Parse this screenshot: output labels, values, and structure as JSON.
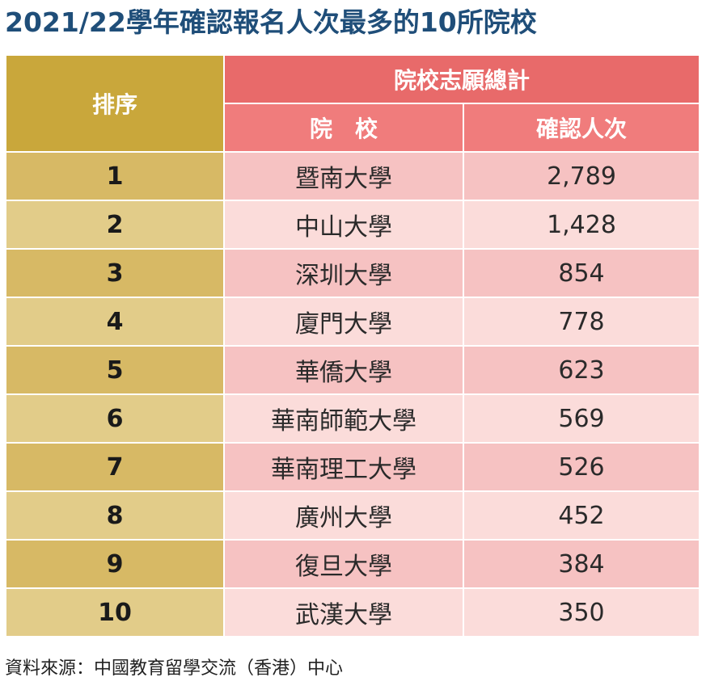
{
  "chart_data": {
    "type": "table",
    "title": "2021/22學年確認報名人次最多的10所院校",
    "columns": {
      "rank": "排序",
      "group": "院校志願總計",
      "school": "院　校",
      "count": "確認人次"
    },
    "rows": [
      {
        "rank": "1",
        "school": "暨南大學",
        "count": "2,789"
      },
      {
        "rank": "2",
        "school": "中山大學",
        "count": "1,428"
      },
      {
        "rank": "3",
        "school": "深圳大學",
        "count": "854"
      },
      {
        "rank": "4",
        "school": "廈門大學",
        "count": "778"
      },
      {
        "rank": "5",
        "school": "華僑大學",
        "count": "623"
      },
      {
        "rank": "6",
        "school": "華南師範大學",
        "count": "569"
      },
      {
        "rank": "7",
        "school": "華南理工大學",
        "count": "526"
      },
      {
        "rank": "8",
        "school": "廣州大學",
        "count": "452"
      },
      {
        "rank": "9",
        "school": "復旦大學",
        "count": "384"
      },
      {
        "rank": "10",
        "school": "武漢大學",
        "count": "350"
      }
    ],
    "source": "資料來源：中國教育留學交流（香港）中心"
  },
  "colors": {
    "title": "#1f4e79",
    "rank_header": "#c9a73b",
    "group_header": "#e86a6a",
    "sub_header": "#f07c7c",
    "rank_cell_dark": "#d7b965",
    "rank_cell_light": "#e2cc89",
    "row_dark": "#f6c2c2",
    "row_light": "#fbdcda"
  }
}
